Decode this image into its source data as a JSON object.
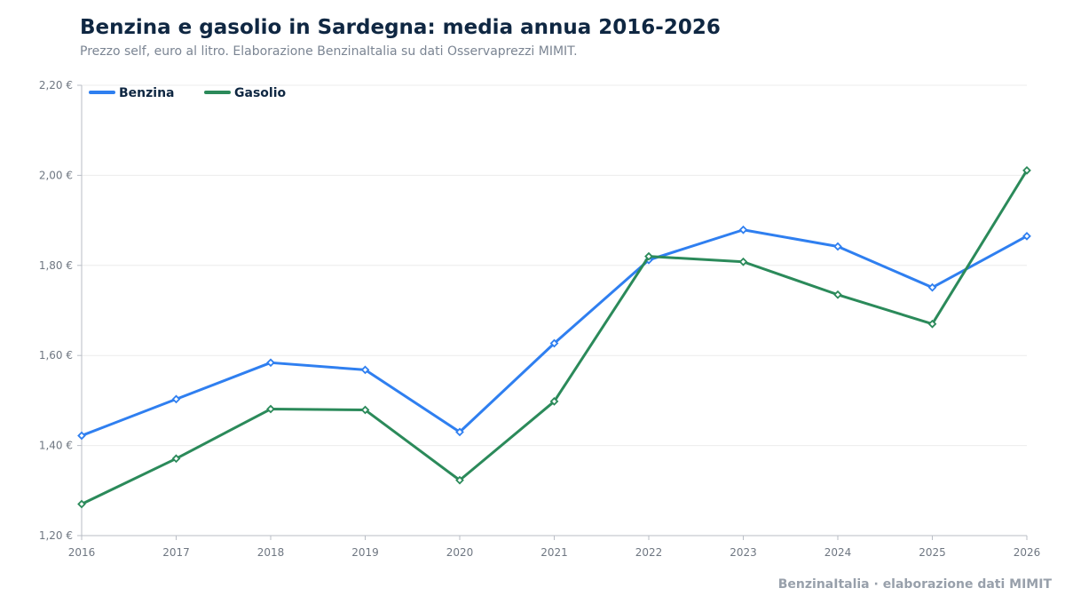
{
  "chart_data": {
    "type": "line",
    "title": "Benzina e gasolio in Sardegna: media annua 2016-2026",
    "subtitle": "Prezzo self, euro al litro. Elaborazione BenzinaItalia su dati Osservaprezzi MIMIT.",
    "xlabel": "",
    "ylabel": "",
    "x": [
      2016,
      2017,
      2018,
      2019,
      2020,
      2021,
      2022,
      2023,
      2024,
      2025,
      2026
    ],
    "x_tick_labels": [
      "2016",
      "2017",
      "2018",
      "2019",
      "2020",
      "2021",
      "2022",
      "2023",
      "2024",
      "2025",
      "2026"
    ],
    "ylim": [
      1.2,
      2.2
    ],
    "y_ticks": [
      1.2,
      1.4,
      1.6,
      1.8,
      2.0,
      2.2
    ],
    "y_tick_labels": [
      "1,20 €",
      "1,40 €",
      "1,60 €",
      "1,80 €",
      "2,00 €",
      "2,20 €"
    ],
    "grid": "horizontal",
    "legend_position": "top-left",
    "series": [
      {
        "name": "Benzina",
        "color": "#2f7ff0",
        "values": [
          1.422,
          1.503,
          1.584,
          1.568,
          1.43,
          1.627,
          1.812,
          1.879,
          1.842,
          1.751,
          1.865
        ]
      },
      {
        "name": "Gasolio",
        "color": "#2b8a5a",
        "values": [
          1.27,
          1.371,
          1.481,
          1.479,
          1.323,
          1.498,
          1.82,
          1.808,
          1.735,
          1.67,
          2.011
        ]
      }
    ]
  },
  "footer": "BenzinaItalia · elaborazione dati MIMIT"
}
